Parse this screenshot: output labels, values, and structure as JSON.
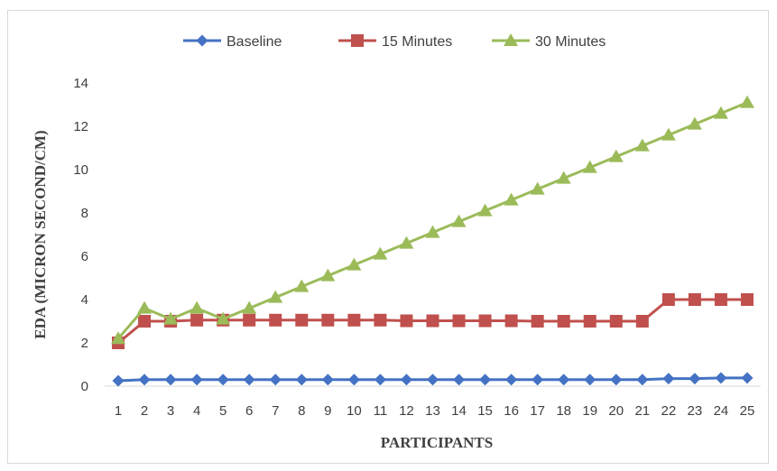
{
  "chart_data": {
    "type": "line",
    "xlabel": "PARTICIPANTS",
    "ylabel": "EDA (MICRON SECOND/CM)",
    "ylim": [
      0,
      14
    ],
    "yticks": [
      "0",
      "2",
      "4",
      "6",
      "8",
      "10",
      "12",
      "14"
    ],
    "grid": false,
    "legend": "top",
    "categories": [
      "1",
      "2",
      "3",
      "4",
      "5",
      "6",
      "7",
      "8",
      "9",
      "10",
      "11",
      "12",
      "13",
      "14",
      "15",
      "16",
      "17",
      "18",
      "19",
      "20",
      "21",
      "22",
      "23",
      "24",
      "25"
    ],
    "series": [
      {
        "name": "Baseline",
        "color": "#4472c4",
        "marker": "diamond",
        "values": [
          0.25,
          0.3,
          0.3,
          0.3,
          0.3,
          0.3,
          0.3,
          0.3,
          0.3,
          0.3,
          0.3,
          0.3,
          0.3,
          0.3,
          0.3,
          0.3,
          0.3,
          0.3,
          0.3,
          0.3,
          0.3,
          0.35,
          0.35,
          0.38,
          0.38
        ]
      },
      {
        "name": "15 Minutes",
        "color": "#c0504d",
        "marker": "square",
        "values": [
          2.0,
          3.0,
          3.0,
          3.05,
          3.05,
          3.05,
          3.05,
          3.05,
          3.05,
          3.05,
          3.05,
          3.02,
          3.02,
          3.02,
          3.02,
          3.02,
          3.0,
          3.0,
          3.0,
          3.0,
          3.0,
          4.0,
          4.0,
          4.0,
          4.0
        ]
      },
      {
        "name": "30 Minutes",
        "color": "#9bbb59",
        "marker": "triangle",
        "values": [
          2.2,
          3.6,
          3.1,
          3.6,
          3.1,
          3.6,
          4.1,
          4.6,
          5.1,
          5.6,
          6.1,
          6.6,
          7.1,
          7.6,
          8.1,
          8.6,
          9.1,
          9.6,
          10.1,
          10.6,
          11.1,
          11.6,
          12.1,
          12.6,
          13.1
        ]
      }
    ]
  }
}
